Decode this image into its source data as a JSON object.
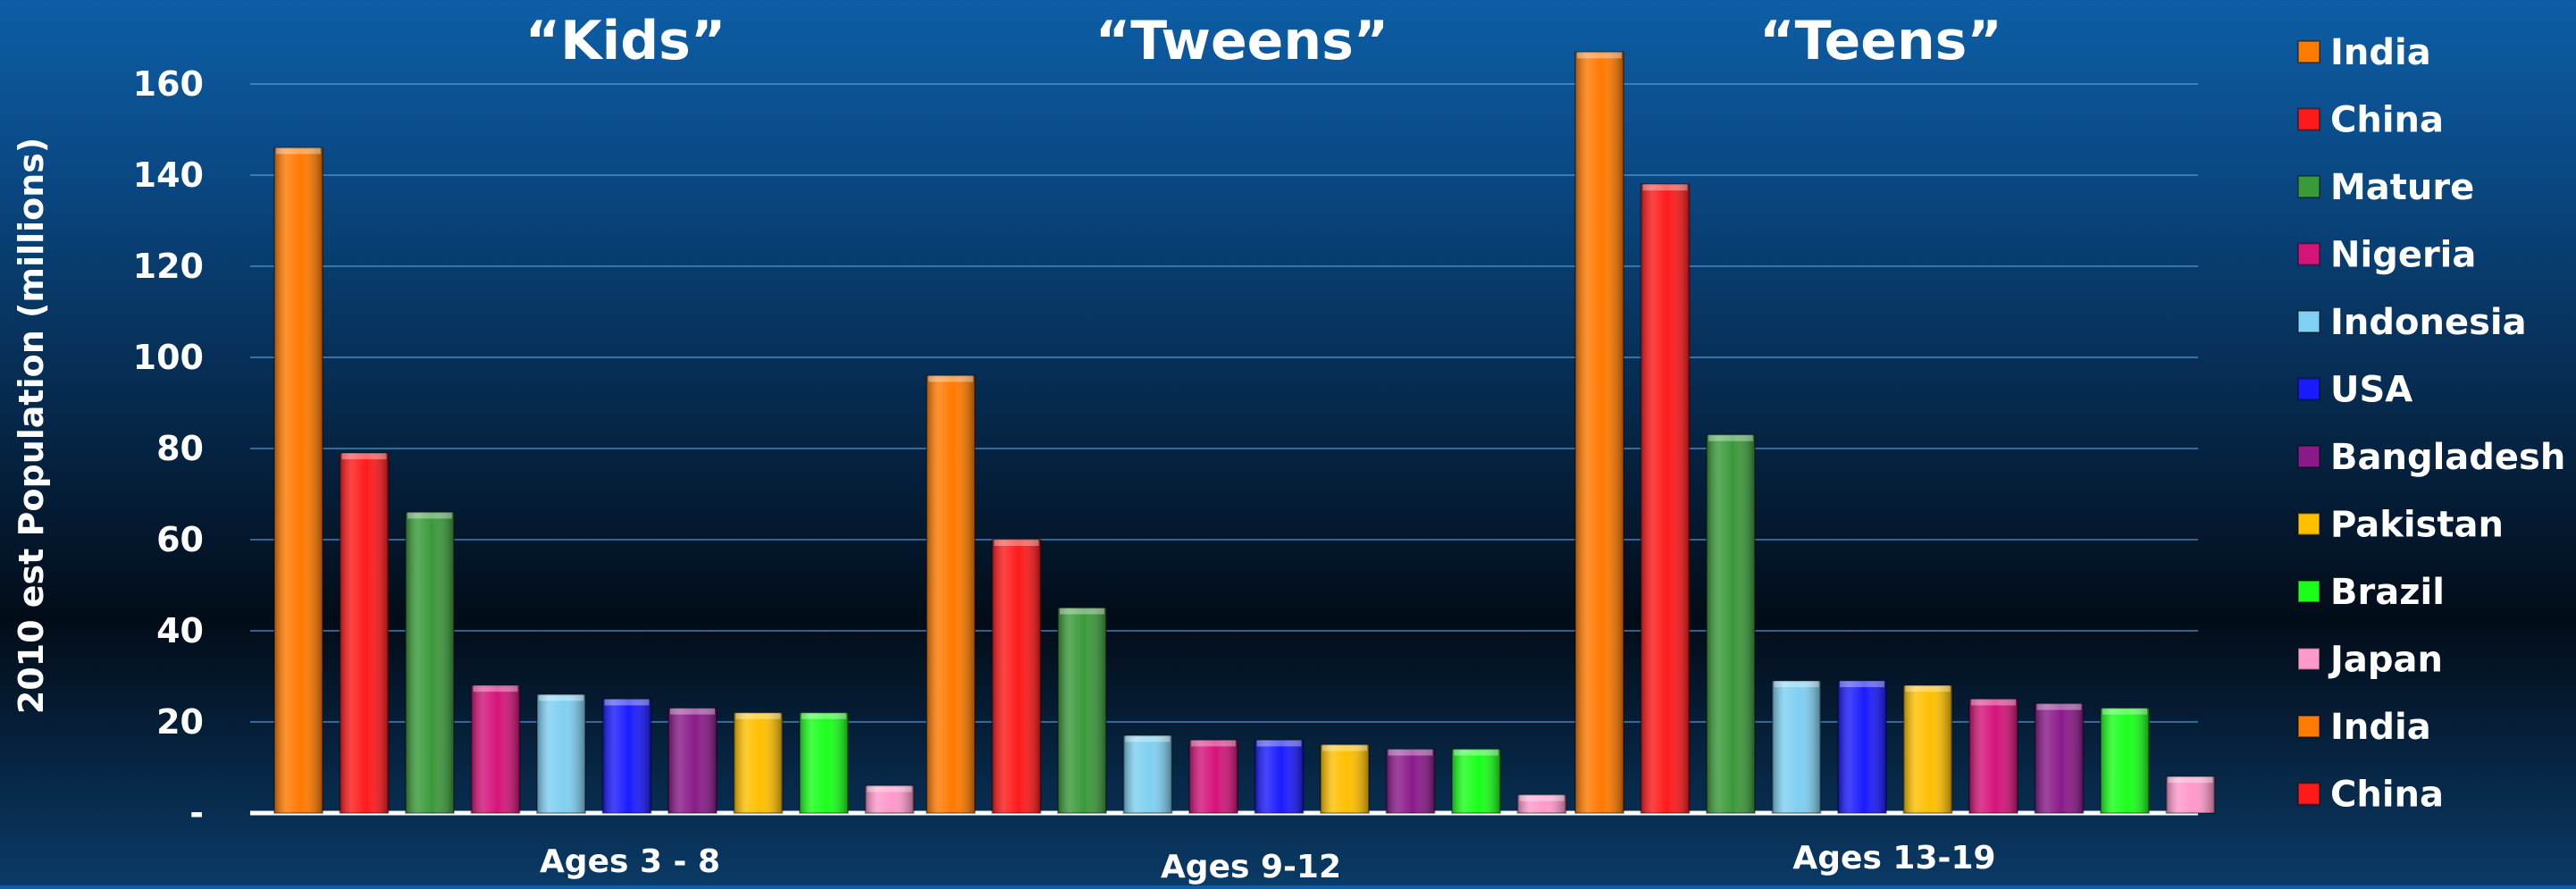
{
  "chart_data": {
    "type": "bar",
    "ylabel": "2010 est Population (millions)",
    "yticks": [
      "-",
      "20",
      "40",
      "60",
      "80",
      "100",
      "120",
      "140",
      "160"
    ],
    "ylim": [
      0,
      170
    ],
    "grid": true,
    "legend_placement": "right",
    "legend": [
      {
        "label": "India",
        "color": "#ff7a00"
      },
      {
        "label": "China",
        "color": "#ff1a1a"
      },
      {
        "label": "Mature",
        "color": "#3a9a3a"
      },
      {
        "label": "Nigeria",
        "color": "#d4147a"
      },
      {
        "label": "Indonesia",
        "color": "#7fd0f2"
      },
      {
        "label": "USA",
        "color": "#1a1aff"
      },
      {
        "label": "Bangladesh",
        "color": "#8a1a8a"
      },
      {
        "label": "Pakistan",
        "color": "#ffc000"
      },
      {
        "label": "Brazil",
        "color": "#1aff1a"
      },
      {
        "label": "Japan",
        "color": "#ff99cc"
      },
      {
        "label": "India",
        "color": "#ff7a00"
      },
      {
        "label": "China",
        "color": "#ff1a1a"
      }
    ],
    "groups": [
      {
        "title": "“Kids”",
        "category": "Ages 3 - 8",
        "bars": [
          {
            "series": "India",
            "value": 146,
            "color": "#ff7a00"
          },
          {
            "series": "China",
            "value": 79,
            "color": "#ff1a1a"
          },
          {
            "series": "Mature",
            "value": 66,
            "color": "#3a9a3a"
          },
          {
            "series": "Nigeria",
            "value": 28,
            "color": "#d4147a"
          },
          {
            "series": "Indonesia",
            "value": 26,
            "color": "#7fd0f2"
          },
          {
            "series": "USA",
            "value": 25,
            "color": "#1a1aff"
          },
          {
            "series": "Bangladesh",
            "value": 23,
            "color": "#8a1a8a"
          },
          {
            "series": "Pakistan",
            "value": 22,
            "color": "#ffc000"
          },
          {
            "series": "Brazil",
            "value": 22,
            "color": "#1aff1a"
          },
          {
            "series": "Japan",
            "value": 6,
            "color": "#ff99cc"
          }
        ]
      },
      {
        "title": "“Tweens”",
        "category": "Ages 9-12",
        "bars": [
          {
            "series": "India",
            "value": 96,
            "color": "#ff7a00"
          },
          {
            "series": "China",
            "value": 60,
            "color": "#ff1a1a"
          },
          {
            "series": "Mature",
            "value": 45,
            "color": "#3a9a3a"
          },
          {
            "series": "Indonesia",
            "value": 17,
            "color": "#7fd0f2"
          },
          {
            "series": "Nigeria",
            "value": 16,
            "color": "#d4147a"
          },
          {
            "series": "USA",
            "value": 16,
            "color": "#1a1aff"
          },
          {
            "series": "Pakistan",
            "value": 15,
            "color": "#ffc000"
          },
          {
            "series": "Bangladesh",
            "value": 14,
            "color": "#8a1a8a"
          },
          {
            "series": "Brazil",
            "value": 14,
            "color": "#1aff1a"
          },
          {
            "series": "Japan",
            "value": 4,
            "color": "#ff99cc"
          }
        ]
      },
      {
        "title": "“Teens”",
        "category": "Ages 13-19",
        "bars": [
          {
            "series": "India",
            "value": 167,
            "color": "#ff7a00"
          },
          {
            "series": "China",
            "value": 138,
            "color": "#ff1a1a"
          },
          {
            "series": "Mature",
            "value": 83,
            "color": "#3a9a3a"
          },
          {
            "series": "Indonesia",
            "value": 29,
            "color": "#7fd0f2"
          },
          {
            "series": "USA",
            "value": 29,
            "color": "#1a1aff"
          },
          {
            "series": "Pakistan",
            "value": 28,
            "color": "#ffc000"
          },
          {
            "series": "Nigeria",
            "value": 25,
            "color": "#d4147a"
          },
          {
            "series": "Bangladesh",
            "value": 24,
            "color": "#8a1a8a"
          },
          {
            "series": "Brazil",
            "value": 23,
            "color": "#1aff1a"
          },
          {
            "series": "Japan",
            "value": 8,
            "color": "#ff99cc"
          }
        ]
      }
    ]
  }
}
